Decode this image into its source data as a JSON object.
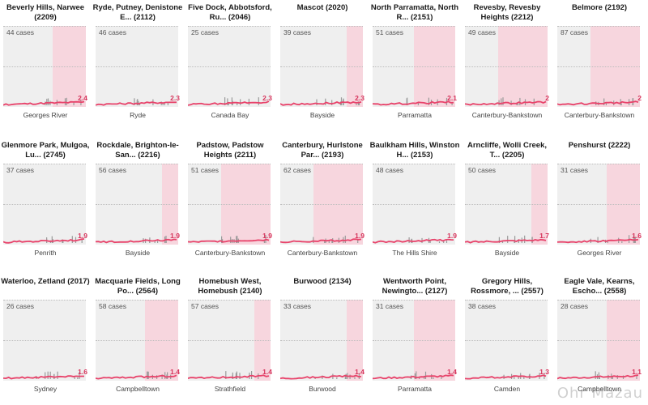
{
  "chart_data": {
    "type": "line",
    "y_max": 1.0,
    "colors": {
      "line": "#e8426a",
      "shade": "#f7d6de",
      "plot_bg": "#efefef",
      "label": "#d6325a"
    },
    "panels": [
      {
        "title": "Beverly Hills, Narwee (2209)",
        "cases": "44 cases",
        "lga": "Georges River",
        "value": "2.4",
        "shade_start": 0.6
      },
      {
        "title": "Ryde, Putney, Denistone E... (2112)",
        "cases": "46 cases",
        "lga": "Ryde",
        "value": "2.3",
        "shade_start": null
      },
      {
        "title": "Five Dock, Abbotsford, Ru... (2046)",
        "cases": "25 cases",
        "lga": "Canada Bay",
        "value": "2.3",
        "shade_start": null
      },
      {
        "title": "Mascot (2020)",
        "cases": "39 cases",
        "lga": "Bayside",
        "value": "2.3",
        "shade_start": 0.8
      },
      {
        "title": "North Parramatta, North R... (2151)",
        "cases": "51 cases",
        "lga": "Parramatta",
        "value": "2.1",
        "shade_start": 0.5
      },
      {
        "title": "Revesby, Revesby Heights (2212)",
        "cases": "49 cases",
        "lga": "Canterbury-Bankstown",
        "value": "2",
        "shade_start": 0.4
      },
      {
        "title": "Belmore (2192)",
        "cases": "87 cases",
        "lga": "Canterbury-Bankstown",
        "value": "2",
        "shade_start": 0.4
      },
      {
        "title": "Glenmore Park, Mulgoa, Lu... (2745)",
        "cases": "37 cases",
        "lga": "Penrith",
        "value": "1.9",
        "shade_start": null
      },
      {
        "title": "Rockdale, Brighton-le-San... (2216)",
        "cases": "56 cases",
        "lga": "Bayside",
        "value": "1.9",
        "shade_start": 0.8
      },
      {
        "title": "Padstow, Padstow Heights (2211)",
        "cases": "51 cases",
        "lga": "Canterbury-Bankstown",
        "value": "1.9",
        "shade_start": 0.4
      },
      {
        "title": "Canterbury, Hurlstone Par... (2193)",
        "cases": "62 cases",
        "lga": "Canterbury-Bankstown",
        "value": "1.9",
        "shade_start": 0.4
      },
      {
        "title": "Baulkham Hills, Winston H... (2153)",
        "cases": "48 cases",
        "lga": "The Hills Shire",
        "value": "1.9",
        "shade_start": null
      },
      {
        "title": "Arncliffe, Wolli Creek, T... (2205)",
        "cases": "50 cases",
        "lga": "Bayside",
        "value": "1.7",
        "shade_start": 0.8
      },
      {
        "title": "Penshurst (2222)",
        "cases": "31 cases",
        "lga": "Georges River",
        "value": "1.6",
        "shade_start": 0.6
      },
      {
        "title": "Waterloo, Zetland (2017)",
        "cases": "26 cases",
        "lga": "Sydney",
        "value": "1.6",
        "shade_start": null
      },
      {
        "title": "Macquarie Fields, Long Po... (2564)",
        "cases": "58 cases",
        "lga": "Campbelltown",
        "value": "1.4",
        "shade_start": 0.6
      },
      {
        "title": "Homebush West, Homebush (2140)",
        "cases": "57 cases",
        "lga": "Strathfield",
        "value": "1.4",
        "shade_start": 0.8
      },
      {
        "title": "Burwood (2134)",
        "cases": "33 cases",
        "lga": "Burwood",
        "value": "1.4",
        "shade_start": 0.8
      },
      {
        "title": "Wentworth Point, Newingto... (2127)",
        "cases": "31 cases",
        "lga": "Parramatta",
        "value": "1.4",
        "shade_start": 0.5
      },
      {
        "title": "Gregory Hills, Rossmore, ... (2557)",
        "cases": "38 cases",
        "lga": "Camden",
        "value": "1.3",
        "shade_start": null
      },
      {
        "title": "Eagle Vale, Kearns, Escho... (2558)",
        "cases": "28 cases",
        "lga": "Campbelltown",
        "value": "1.1",
        "shade_start": 0.6
      }
    ]
  },
  "watermark": "Ohr Mazau"
}
